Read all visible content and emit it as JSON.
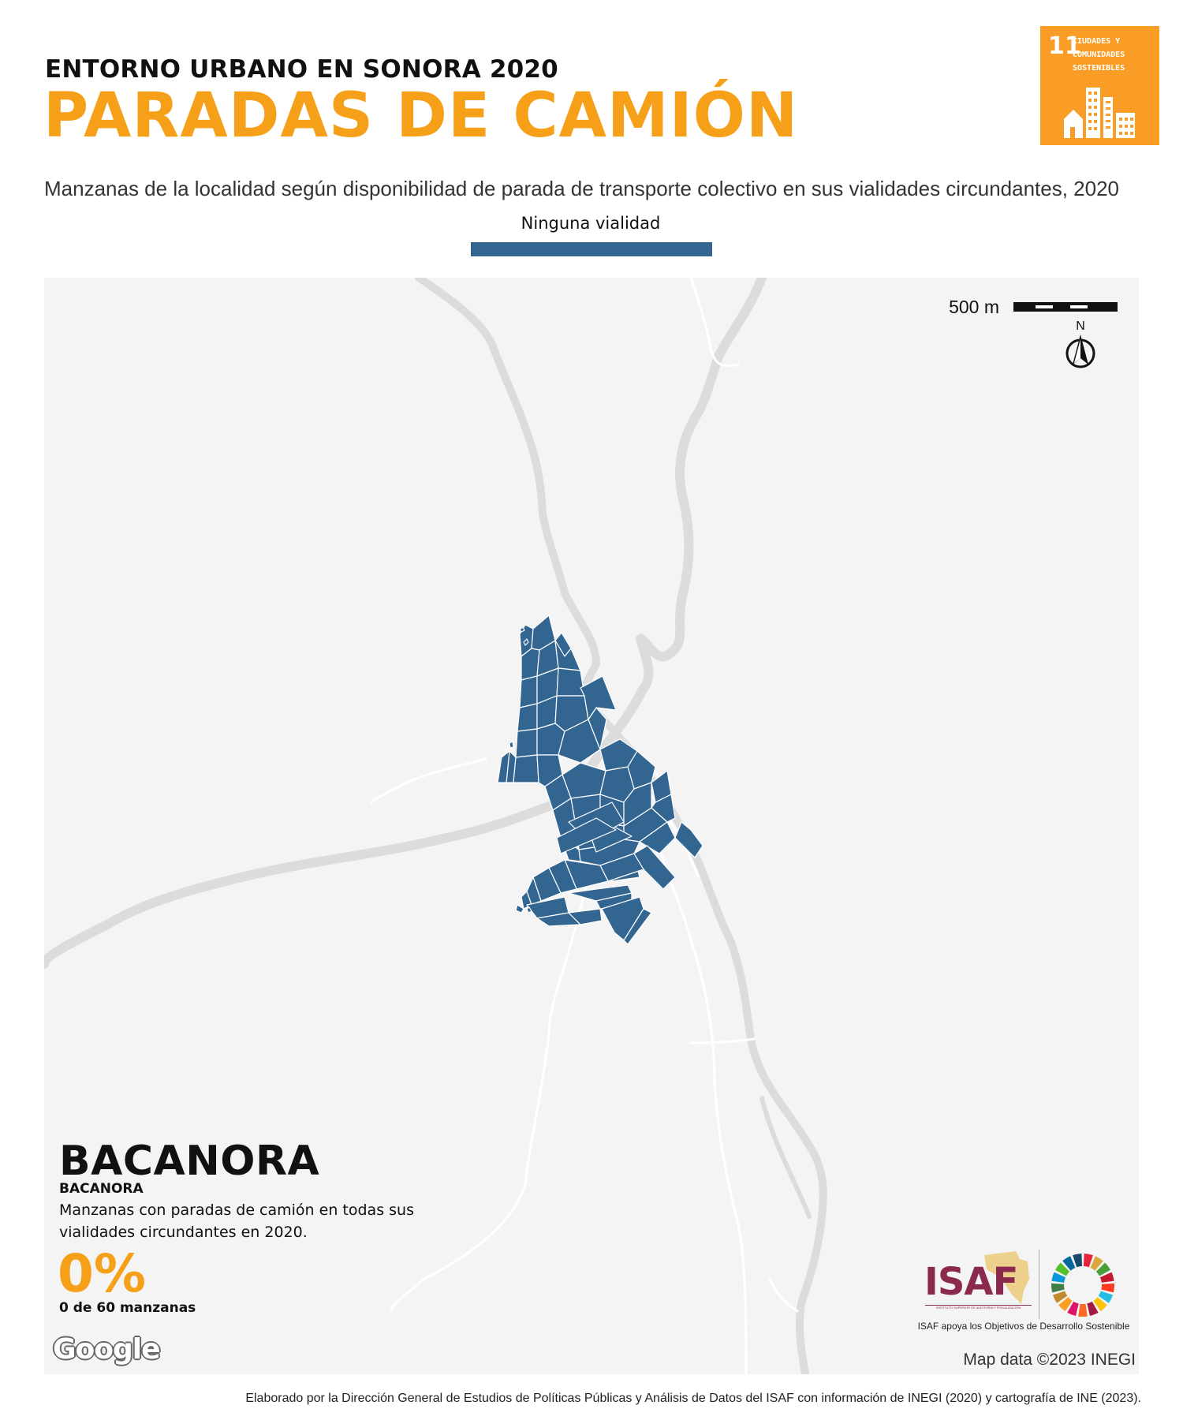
{
  "header": {
    "supertitle": "ENTORNO URBANO EN SONORA 2020",
    "title": "PARADAS DE CAMIÓN",
    "subtitle": "Manzanas de la localidad según disponibilidad de parada de transporte colectivo en sus vialidades circundantes, 2020"
  },
  "legend": {
    "label": "Ninguna vialidad",
    "color": "#336591"
  },
  "sdg_badge": {
    "number": "11",
    "label_line1": "CIUDADES Y",
    "label_line2": "COMUNIDADES",
    "label_line3": "SOSTENIBLES",
    "color": "#F99D26",
    "icon": "city-buildings-icon"
  },
  "map": {
    "scale_label": "500 m",
    "north_label": "N",
    "attribution": "Map data ©2023 INEGI",
    "provider": "Google",
    "block_color": "#336591",
    "background_color": "#F4F4F4"
  },
  "locality": {
    "municipality": "BACANORA",
    "name": "BACANORA",
    "stat_description": "Manzanas con paradas de camión en todas sus vialidades circundantes en 2020.",
    "stat_value": "0%",
    "stat_count": "0 de 60 manzanas"
  },
  "logos": {
    "isaf": "ISAF",
    "isaf_full": "INSTITUTO SUPERIOR DE AUDITORÍA Y FISCALIZACIÓN",
    "caption": "ISAF apoya los Objetivos de Desarrollo Sostenible"
  },
  "footer": {
    "credit": "Elaborado por la Dirección General de Estudios de Políticas Públicas y Análisis de Datos del ISAF con información de INEGI (2020) y cartografía de INE (2023)."
  }
}
